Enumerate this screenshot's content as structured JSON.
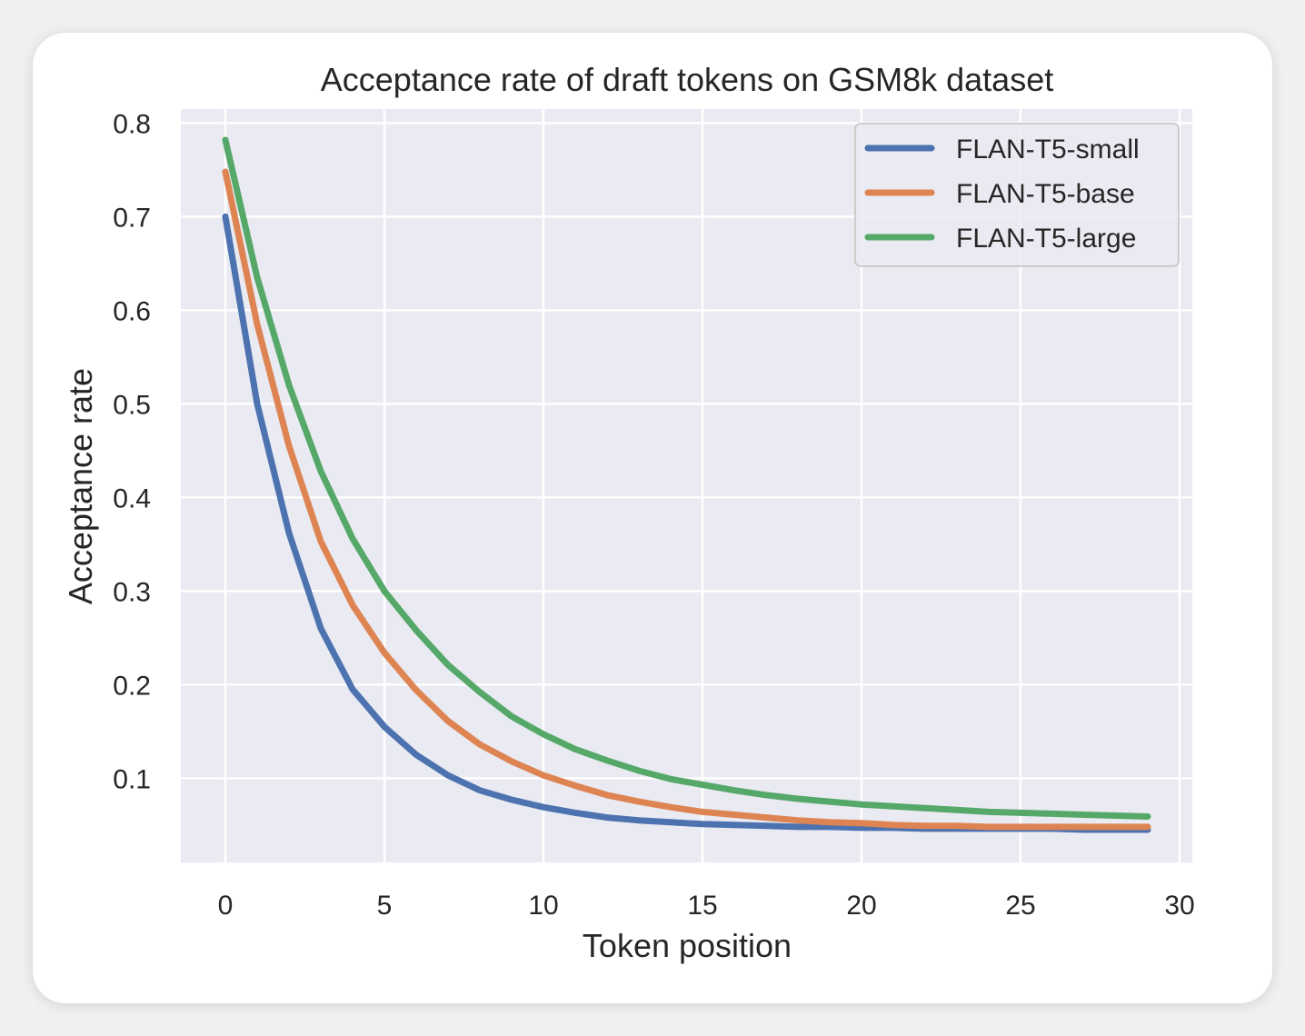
{
  "chart_data": {
    "type": "line",
    "title": "Acceptance rate of draft tokens on GSM8k dataset",
    "xlabel": "Token position",
    "ylabel": "Acceptance rate",
    "xlim": [
      -1.4,
      30.4
    ],
    "ylim": [
      0.01,
      0.815
    ],
    "xticks": [
      0,
      5,
      10,
      15,
      20,
      25,
      30
    ],
    "yticks": [
      0.1,
      0.2,
      0.3,
      0.4,
      0.5,
      0.6,
      0.7,
      0.8
    ],
    "grid": true,
    "legend_position": "top-right",
    "x": [
      0,
      1,
      2,
      3,
      4,
      5,
      6,
      7,
      8,
      9,
      10,
      11,
      12,
      13,
      14,
      15,
      16,
      17,
      18,
      19,
      20,
      21,
      22,
      23,
      24,
      25,
      26,
      27,
      28,
      29
    ],
    "series": [
      {
        "name": "FLAN-T5-small",
        "color": "#4c72b0",
        "values": [
          0.7,
          0.5,
          0.362,
          0.26,
          0.195,
          0.155,
          0.125,
          0.103,
          0.087,
          0.077,
          0.069,
          0.063,
          0.058,
          0.055,
          0.053,
          0.051,
          0.05,
          0.049,
          0.048,
          0.048,
          0.047,
          0.047,
          0.046,
          0.046,
          0.046,
          0.046,
          0.046,
          0.045,
          0.045,
          0.045
        ]
      },
      {
        "name": "FLAN-T5-base",
        "color": "#dd8452",
        "values": [
          0.748,
          0.585,
          0.455,
          0.353,
          0.285,
          0.234,
          0.194,
          0.161,
          0.136,
          0.118,
          0.103,
          0.092,
          0.082,
          0.075,
          0.069,
          0.064,
          0.061,
          0.058,
          0.055,
          0.053,
          0.052,
          0.05,
          0.049,
          0.049,
          0.048,
          0.048,
          0.048,
          0.048,
          0.048,
          0.048
        ]
      },
      {
        "name": "FLAN-T5-large",
        "color": "#55a868",
        "values": [
          0.782,
          0.635,
          0.52,
          0.428,
          0.356,
          0.3,
          0.258,
          0.221,
          0.192,
          0.166,
          0.147,
          0.131,
          0.119,
          0.108,
          0.099,
          0.093,
          0.087,
          0.082,
          0.078,
          0.075,
          0.072,
          0.07,
          0.068,
          0.066,
          0.064,
          0.063,
          0.062,
          0.061,
          0.06,
          0.059
        ]
      }
    ]
  }
}
